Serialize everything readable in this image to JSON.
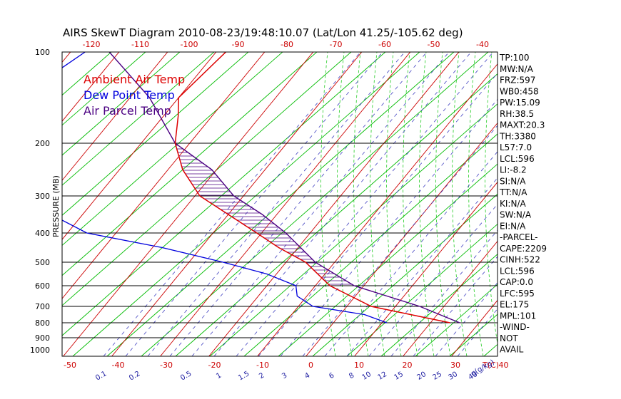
{
  "title": "AIRS SkewT Diagram 2010-08-23/19:48:10.07 (Lat/Lon 41.25/-105.62 deg)",
  "colors": {
    "ambient": "#dd0000",
    "dewpoint": "#0000dd",
    "parcel": "#4b0082",
    "isotherm": "#cc0000",
    "dry_adiabat": "#00bb00",
    "moist_adiabat": "#22cc22",
    "mixing": "#4040c0"
  },
  "chart_data": {
    "type": "line",
    "title": "AIRS SkewT Diagram 2010-08-23/19:48:10.07 (Lat/Lon 41.25/-105.62 deg)",
    "ylabel": "PRESSURE (MB)",
    "xlabel": "T(C)",
    "mixing_unit": "q(g/kg)",
    "pressure_ticks": [
      100,
      200,
      300,
      400,
      500,
      600,
      700,
      800,
      900,
      1000
    ],
    "pressure_lines": [
      200,
      300,
      400,
      500,
      600,
      700,
      800,
      900
    ],
    "top_temp_ticks": [
      -120,
      -110,
      -100,
      -90,
      -80,
      -70,
      -60,
      -50,
      -40
    ],
    "bottom_temp_ticks": [
      -50,
      -40,
      -30,
      -20,
      -10,
      0,
      10,
      20,
      30,
      40
    ],
    "mixing_ratio_labels": [
      "0.1",
      "0.2",
      "0.5",
      "1",
      "1.5",
      "2",
      "3",
      "4",
      "6",
      "8",
      "10",
      "12",
      "15",
      "20",
      "25",
      "30",
      "40"
    ],
    "legend": [
      {
        "label": "Ambient Air Temp",
        "color": "#dd0000"
      },
      {
        "label": "Dew Point Temp",
        "color": "#0000dd"
      },
      {
        "label": "Air Parcel Temp",
        "color": "#4b0082"
      }
    ],
    "series": [
      {
        "name": "Ambient Air Temp",
        "points": [
          [
            100,
            -68
          ],
          [
            150,
            -70
          ],
          [
            170,
            -67
          ],
          [
            200,
            -63
          ],
          [
            250,
            -57
          ],
          [
            300,
            -49
          ],
          [
            350,
            -40
          ],
          [
            400,
            -31
          ],
          [
            450,
            -24
          ],
          [
            500,
            -16
          ],
          [
            600,
            -7
          ],
          [
            700,
            5
          ],
          [
            800,
            24
          ]
        ]
      },
      {
        "name": "Dew Point Temp",
        "points": [
          [
            100,
            -97
          ],
          [
            150,
            -103
          ],
          [
            200,
            -100
          ],
          [
            250,
            -87
          ],
          [
            300,
            -87
          ],
          [
            400,
            -66
          ],
          [
            450,
            -48
          ],
          [
            500,
            -33
          ],
          [
            550,
            -22
          ],
          [
            600,
            -14
          ],
          [
            650,
            -12
          ],
          [
            700,
            -7
          ],
          [
            750,
            5
          ],
          [
            800,
            11
          ]
        ]
      },
      {
        "name": "Air Parcel Temp",
        "points": [
          [
            100,
            -92
          ],
          [
            150,
            -76
          ],
          [
            200,
            -63
          ],
          [
            250,
            -51
          ],
          [
            300,
            -42
          ],
          [
            350,
            -33
          ],
          [
            400,
            -25
          ],
          [
            500,
            -14
          ],
          [
            600,
            -2
          ],
          [
            700,
            15
          ],
          [
            800,
            26
          ]
        ]
      }
    ],
    "cape_shading": {
      "from_pressure": 600,
      "to_pressure": 175
    }
  },
  "indices": [
    "TP:100",
    "MW:N/A",
    "FRZ:597",
    "WB0:458",
    "PW:15.09",
    "RH:38.5",
    "MAXT:20.3",
    "TH:3380",
    "L57:7.0",
    "LCL:596",
    "LI:-8.2",
    "SI:N/A",
    "TT:N/A",
    "KI:N/A",
    "SW:N/A",
    "EI:N/A",
    "-PARCEL-",
    "CAPE:2209",
    "CINH:522",
    "LCL:596",
    "CAP:0.0",
    "LFC:595",
    "EL:175",
    "MPL:101",
    "-WIND-",
    "NOT",
    "AVAIL"
  ]
}
